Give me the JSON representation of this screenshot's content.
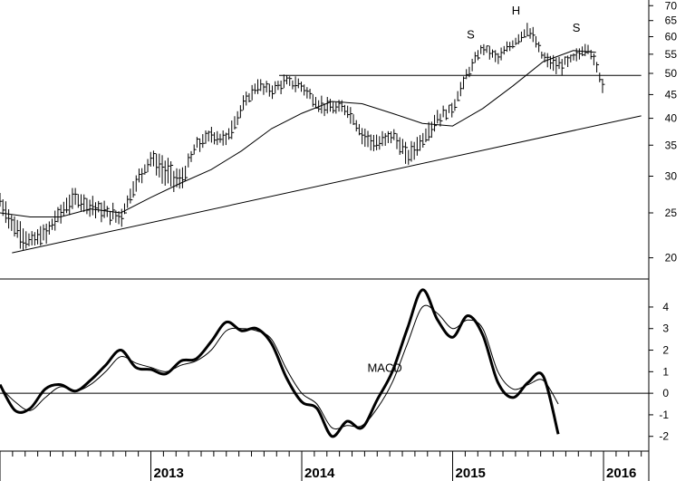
{
  "chart_data": [
    {
      "type": "line",
      "panel": "price",
      "scale": "log",
      "ylim": [
        18,
        72
      ],
      "y_ticks": [
        20,
        25,
        30,
        35,
        40,
        45,
        50,
        55,
        60,
        65,
        70
      ],
      "y_tick_labels": [
        "20",
        "25",
        "30",
        "35",
        "40",
        "45",
        "50",
        "55",
        "60",
        "65",
        "70"
      ],
      "x_range": [
        2012.0,
        2016.3
      ],
      "x_ticks": [
        2013,
        2014,
        2015,
        2016
      ],
      "x_tick_labels": [
        "2013",
        "2014",
        "2015",
        "2016"
      ],
      "series": [
        {
          "type": "price-bars",
          "x": [
            2012.0,
            2012.1,
            2012.2,
            2012.3,
            2012.4,
            2012.5,
            2012.6,
            2012.7,
            2012.8,
            2012.9,
            2013.0,
            2013.1,
            2013.2,
            2013.3,
            2013.4,
            2013.5,
            2013.6,
            2013.7,
            2013.8,
            2013.9,
            2014.0,
            2014.1,
            2014.2,
            2014.3,
            2014.4,
            2014.5,
            2014.6,
            2014.7,
            2014.8,
            2014.9,
            2015.0,
            2015.1,
            2015.2,
            2015.3,
            2015.4,
            2015.5,
            2015.6,
            2015.7,
            2015.8,
            2015.9,
            2016.0
          ],
          "values": [
            26.5,
            23,
            21.5,
            22.5,
            25,
            27,
            26,
            25,
            24.5,
            29,
            33,
            31,
            29,
            35,
            37,
            36,
            42,
            47,
            46,
            48,
            47,
            43,
            42,
            42,
            37,
            35,
            37,
            33,
            36,
            40,
            42,
            50,
            57,
            54,
            58,
            62,
            54,
            52,
            54,
            57,
            47
          ],
          "highs": [
            28,
            25,
            23,
            24,
            26.5,
            28.5,
            27.5,
            26.5,
            26,
            30.5,
            34.5,
            33,
            31,
            36.5,
            38.5,
            38,
            44,
            49,
            48,
            50,
            49,
            45,
            44,
            44,
            39,
            37,
            39,
            35,
            38,
            42,
            44,
            52,
            59,
            56,
            60,
            66,
            56,
            54,
            56,
            59,
            49
          ],
          "lows": [
            25,
            21.5,
            20.5,
            21,
            23.5,
            25.5,
            24.5,
            23.5,
            23,
            27.5,
            31,
            28,
            27.5,
            33,
            35,
            34,
            40,
            45,
            44,
            46,
            45,
            41,
            40,
            40,
            35,
            33,
            35,
            31,
            34,
            38,
            40,
            48,
            55,
            52,
            56,
            60,
            52,
            49,
            52,
            55,
            44
          ]
        },
        {
          "type": "moving-average",
          "x": [
            2012.0,
            2012.2,
            2012.4,
            2012.6,
            2012.8,
            2013.0,
            2013.2,
            2013.4,
            2013.6,
            2013.8,
            2014.0,
            2014.2,
            2014.4,
            2014.6,
            2014.8,
            2015.0,
            2015.2,
            2015.4,
            2015.6,
            2015.8,
            2015.95
          ],
          "values": [
            25,
            24.5,
            24.5,
            25.5,
            25,
            27,
            29,
            31,
            34,
            38,
            41,
            43.5,
            43,
            41,
            39,
            38.5,
            42,
            47,
            53,
            56,
            55.5
          ]
        }
      ],
      "trendlines": [
        {
          "x": [
            2012.08,
            2016.25
          ],
          "values": [
            20.5,
            40.5
          ]
        },
        {
          "x": [
            2013.85,
            2016.25
          ],
          "values": [
            49.5,
            49.5
          ]
        }
      ],
      "annotations": [
        {
          "text": "S",
          "x": 2015.12,
          "y": 59.5
        },
        {
          "text": "H",
          "x": 2015.42,
          "y": 67
        },
        {
          "text": "S",
          "x": 2015.82,
          "y": 61.5
        }
      ]
    },
    {
      "type": "line",
      "panel": "macd",
      "ylim": [
        -2.6,
        5.3
      ],
      "y_ticks": [
        -2,
        -1,
        0,
        1,
        2,
        3,
        4
      ],
      "y_tick_labels": [
        "-2",
        "-1",
        "0",
        "1",
        "2",
        "3",
        "4"
      ],
      "x_range": [
        2012.0,
        2016.3
      ],
      "annotations": [
        {
          "text": "MACD",
          "x": 2014.55,
          "y": 1.0
        }
      ],
      "series": [
        {
          "type": "macd-line",
          "x": [
            2012.0,
            2012.1,
            2012.2,
            2012.3,
            2012.4,
            2012.5,
            2012.6,
            2012.7,
            2012.8,
            2012.9,
            2013.0,
            2013.1,
            2013.2,
            2013.3,
            2013.4,
            2013.5,
            2013.6,
            2013.7,
            2013.8,
            2013.9,
            2014.0,
            2014.1,
            2014.2,
            2014.3,
            2014.4,
            2014.5,
            2014.6,
            2014.7,
            2014.8,
            2014.9,
            2015.0,
            2015.1,
            2015.2,
            2015.3,
            2015.4,
            2015.5,
            2015.6,
            2015.7,
            2015.8,
            2015.9,
            2016.0
          ],
          "values": [
            0.4,
            -0.8,
            -0.7,
            0.2,
            0.4,
            0.1,
            0.6,
            1.3,
            2.0,
            1.2,
            1.1,
            0.9,
            1.5,
            1.6,
            2.4,
            3.3,
            2.9,
            3.0,
            2.3,
            0.7,
            -0.4,
            -0.7,
            -2.0,
            -1.3,
            -1.6,
            -0.3,
            1.0,
            3.0,
            4.8,
            3.4,
            2.6,
            3.6,
            2.7,
            0.5,
            -0.2,
            0.5,
            0.8,
            -1.9,
            null,
            null,
            null
          ]
        },
        {
          "type": "signal-line",
          "x": [
            2012.0,
            2012.1,
            2012.2,
            2012.3,
            2012.4,
            2012.5,
            2012.6,
            2012.7,
            2012.8,
            2012.9,
            2013.0,
            2013.1,
            2013.2,
            2013.3,
            2013.4,
            2013.5,
            2013.6,
            2013.7,
            2013.8,
            2013.9,
            2014.0,
            2014.1,
            2014.2,
            2014.3,
            2014.4,
            2014.5,
            2014.6,
            2014.7,
            2014.8,
            2014.9,
            2015.0,
            2015.1,
            2015.2,
            2015.3,
            2015.4,
            2015.5,
            2015.6,
            2015.7,
            2015.8,
            2015.9,
            2016.0
          ],
          "values": [
            0.3,
            -0.4,
            -0.8,
            -0.2,
            0.3,
            0.1,
            0.4,
            1.0,
            1.7,
            1.4,
            1.2,
            1.0,
            1.3,
            1.5,
            2.0,
            2.9,
            3.0,
            2.9,
            2.5,
            1.1,
            0.0,
            -0.5,
            -1.6,
            -1.5,
            -1.5,
            -0.7,
            0.5,
            2.3,
            4.0,
            3.7,
            3.0,
            3.4,
            3.0,
            1.0,
            0.2,
            0.4,
            0.6,
            -0.5,
            null,
            null,
            null
          ]
        }
      ]
    }
  ]
}
